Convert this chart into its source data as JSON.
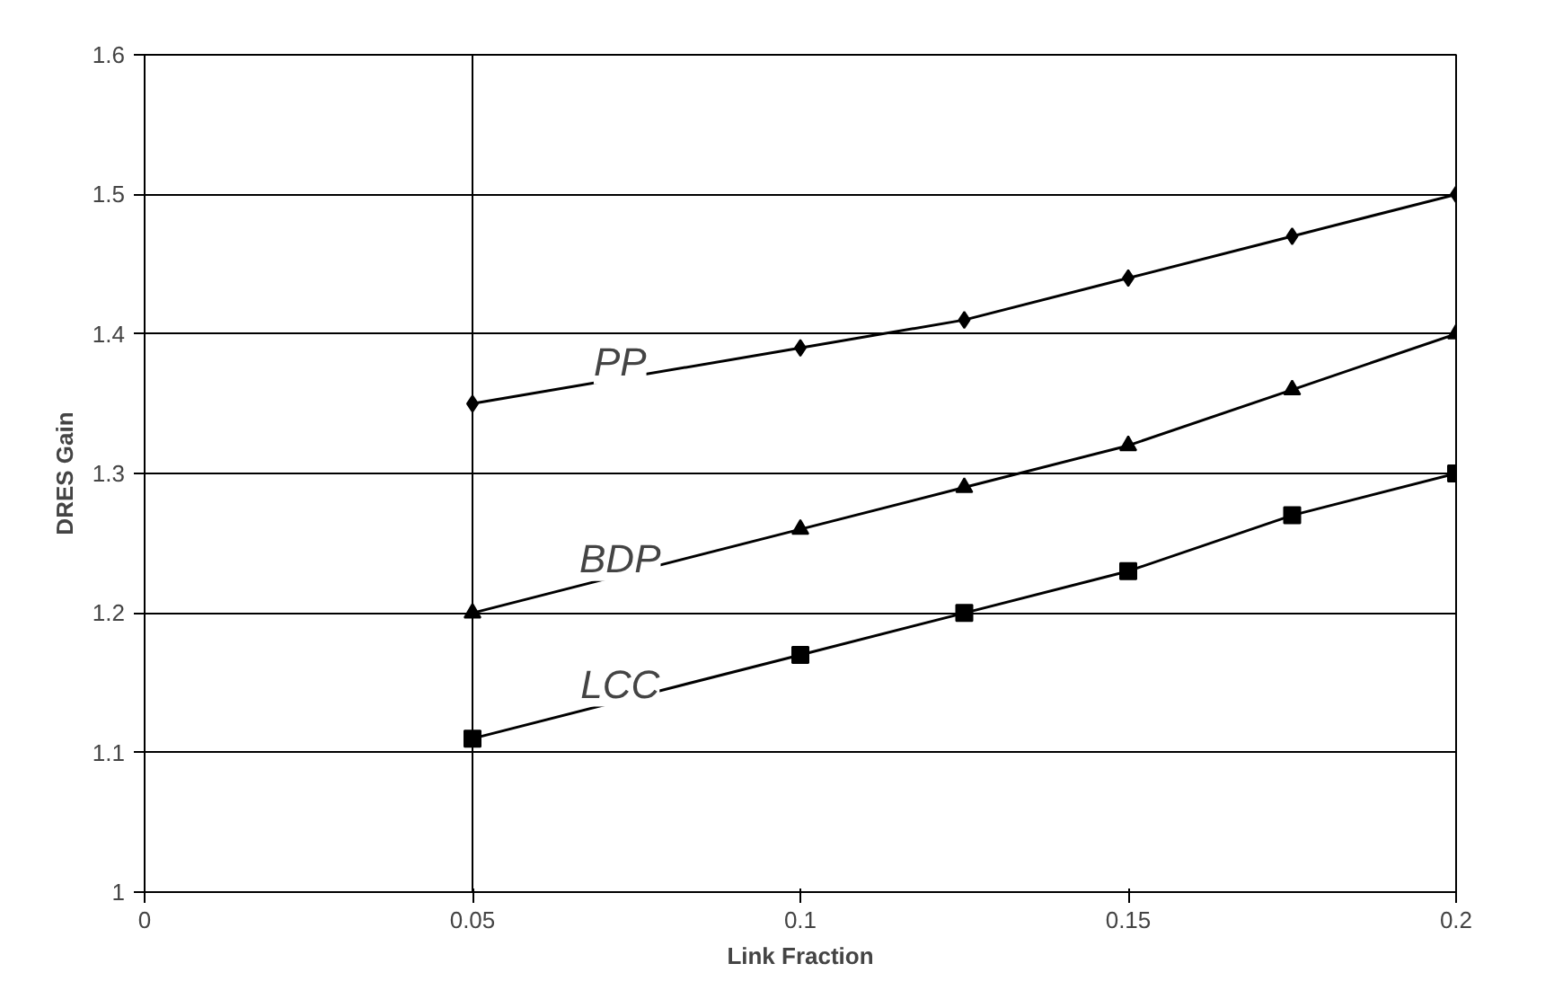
{
  "chart_data": {
    "type": "line",
    "xlabel": "Link Fraction",
    "ylabel": "DRES Gain",
    "x": [
      0.05,
      0.1,
      0.125,
      0.15,
      0.175,
      0.2
    ],
    "series": [
      {
        "name": "PP",
        "color": "#000000",
        "marker": "diamond",
        "values": [
          1.35,
          1.39,
          1.41,
          1.44,
          1.47,
          1.5
        ]
      },
      {
        "name": "BDP",
        "color": "#000000",
        "marker": "triangle",
        "values": [
          1.2,
          1.26,
          1.29,
          1.32,
          1.36,
          1.4
        ]
      },
      {
        "name": "LCC",
        "color": "#000000",
        "marker": "square",
        "values": [
          1.11,
          1.17,
          1.2,
          1.23,
          1.27,
          1.3
        ]
      }
    ],
    "xlim": [
      0,
      0.2
    ],
    "xticks": [
      0,
      0.05,
      0.1,
      0.15,
      0.2
    ],
    "ylim": [
      1,
      1.6
    ],
    "yticks": [
      1,
      1.1,
      1.2,
      1.3,
      1.4,
      1.5,
      1.6
    ],
    "grid": "y",
    "line_style": "solid",
    "ref_lines": [
      {
        "axis": "x",
        "value": 0.05,
        "label": null,
        "color": "#000000"
      }
    ]
  }
}
